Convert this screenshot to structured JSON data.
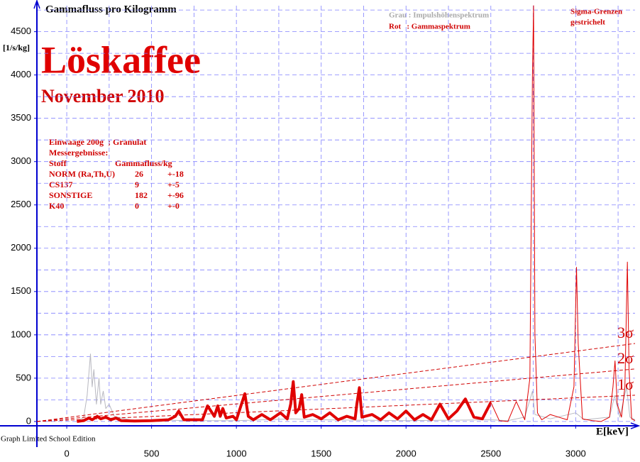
{
  "chart_data": {
    "type": "line",
    "title": "Gammafluss pro Kilogramm",
    "y_label": "[1/s/kg]",
    "x_label": "E[keV]",
    "headline": "Löskaffee",
    "subheadline": "November 2010",
    "legend_lines": [
      "Grau : Impulshöhenspektrum",
      "Rot   : Gammaspektrum"
    ],
    "sigma_note": [
      "Sigma-Grenzen",
      "gestrichelt"
    ],
    "footer": "Graph Limited School Edition",
    "info": {
      "lines": [
        "Einwaage 200g  ; Granulat",
        "Messergebnisse:"
      ],
      "header": [
        "Stoff",
        "Gammafluss/kg"
      ],
      "rows": [
        [
          "NORM (Ra,Th,U)",
          26,
          "+-18"
        ],
        [
          "CS137",
          9,
          "+-5"
        ],
        [
          "SONSTIGE",
          182,
          "+-96"
        ],
        [
          "K40",
          0,
          "+-0"
        ]
      ]
    },
    "xlim": [
      -176,
      3350
    ],
    "ylim": [
      -50,
      4800
    ],
    "xticks": [
      0,
      500,
      1000,
      1500,
      2000,
      2500,
      3000
    ],
    "yticks": [
      0,
      500,
      1000,
      1500,
      2000,
      2500,
      3000,
      3500,
      4000,
      4500
    ],
    "xgrid": [
      0,
      250,
      500,
      750,
      1000,
      1250,
      1500,
      1750,
      2000,
      2250,
      2500,
      2750,
      3000,
      3250
    ],
    "ygrid": [
      0,
      250,
      500,
      750,
      1000,
      1250,
      1500,
      1750,
      2000,
      2250,
      2500,
      2750,
      3000,
      3250,
      3500,
      3750,
      4000,
      4250,
      4500,
      4750
    ],
    "grid": true,
    "series": [
      {
        "color": "#b8b8c0",
        "width": 1,
        "x": [
          60,
          100,
          120,
          140,
          150,
          160,
          175,
          190,
          200,
          215,
          230,
          250,
          280,
          320,
          400,
          500,
          700,
          1000,
          1330,
          1500,
          2000,
          2500,
          2600,
          2700,
          2745,
          2760,
          2850,
          3000,
          3050,
          3200,
          3230,
          3260,
          3300,
          3320,
          3350
        ],
        "values": [
          0,
          50,
          300,
          780,
          400,
          600,
          200,
          500,
          200,
          350,
          150,
          200,
          60,
          40,
          10,
          20,
          10,
          10,
          30,
          20,
          10,
          20,
          10,
          50,
          350,
          80,
          30,
          100,
          20,
          50,
          300,
          50,
          400,
          50,
          20
        ]
      },
      {
        "color": "#e00000",
        "width": 1,
        "thick_below_x": 2500,
        "x": [
          60,
          100,
          130,
          150,
          180,
          200,
          230,
          260,
          290,
          320,
          400,
          500,
          600,
          640,
          660,
          690,
          800,
          830,
          850,
          870,
          890,
          905,
          920,
          940,
          980,
          1000,
          1030,
          1050,
          1070,
          1100,
          1150,
          1200,
          1260,
          1300,
          1320,
          1335,
          1350,
          1370,
          1385,
          1400,
          1450,
          1500,
          1550,
          1600,
          1650,
          1700,
          1710,
          1725,
          1740,
          1800,
          1850,
          1900,
          1950,
          2000,
          2050,
          2100,
          2150,
          2200,
          2250,
          2300,
          2350,
          2400,
          2450,
          2500,
          2550,
          2600,
          2650,
          2700,
          2730,
          2745,
          2752,
          2760,
          2775,
          2800,
          2850,
          2900,
          2950,
          2990,
          3005,
          3015,
          3040,
          3100,
          3150,
          3200,
          3220,
          3232,
          3245,
          3270,
          3290,
          3305,
          3315,
          3330,
          3350
        ],
        "values": [
          0,
          10,
          40,
          20,
          60,
          30,
          50,
          20,
          40,
          10,
          5,
          10,
          20,
          60,
          120,
          20,
          20,
          180,
          120,
          60,
          180,
          60,
          150,
          40,
          60,
          20,
          200,
          320,
          60,
          20,
          80,
          20,
          100,
          30,
          200,
          460,
          100,
          150,
          310,
          50,
          80,
          30,
          100,
          20,
          60,
          30,
          200,
          390,
          50,
          80,
          20,
          100,
          30,
          120,
          20,
          80,
          20,
          200,
          30,
          120,
          260,
          50,
          30,
          220,
          10,
          0,
          230,
          20,
          500,
          4000,
          4800,
          1000,
          100,
          20,
          80,
          50,
          20,
          400,
          1780,
          900,
          30,
          10,
          0,
          50,
          400,
          700,
          200,
          50,
          400,
          1840,
          600,
          30,
          10
        ]
      },
      {
        "name": "1σ",
        "color": "#d00000",
        "width": 1,
        "dash": true,
        "x": [
          -176,
          3350
        ],
        "values": [
          0,
          303
        ]
      },
      {
        "name": "2σ",
        "color": "#d00000",
        "width": 1,
        "dash": true,
        "x": [
          -176,
          3350
        ],
        "values": [
          0,
          606
        ]
      },
      {
        "name": "3σ",
        "color": "#d00000",
        "width": 1,
        "dash": true,
        "x": [
          -176,
          3350
        ],
        "values": [
          0,
          900
        ]
      }
    ]
  }
}
